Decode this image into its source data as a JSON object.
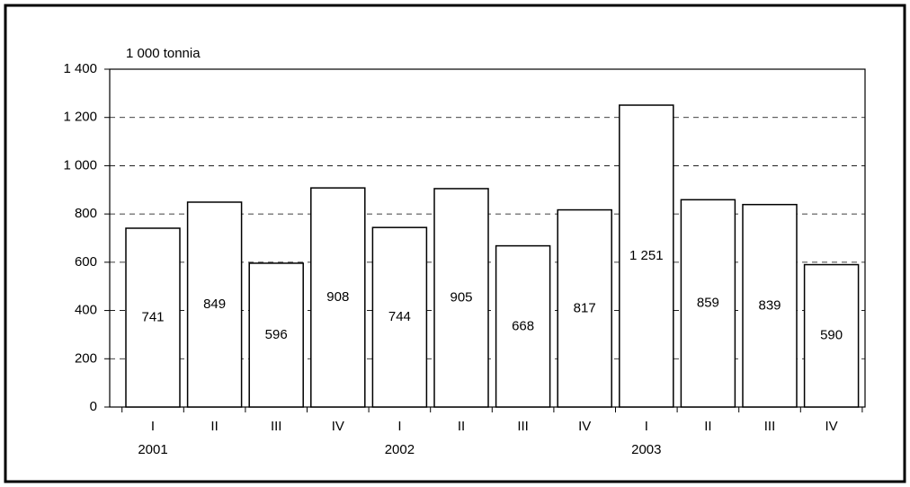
{
  "chart_data": {
    "type": "bar",
    "y_axis_label": "1 000 tonnia",
    "categories": [
      "I",
      "II",
      "III",
      "IV",
      "I",
      "II",
      "III",
      "IV",
      "I",
      "II",
      "III",
      "IV"
    ],
    "x_groups": [
      "2001",
      "2002",
      "2003"
    ],
    "values": [
      741,
      849,
      596,
      908,
      744,
      905,
      668,
      817,
      1251,
      859,
      839,
      590
    ],
    "value_labels": [
      "741",
      "849",
      "596",
      "908",
      "744",
      "905",
      "668",
      "817",
      "1 251",
      "859",
      "839",
      "590"
    ],
    "color": "#ffffff",
    "ylim": [
      0,
      1400
    ],
    "yticks": [
      0,
      200,
      400,
      600,
      800,
      {
        "value": 1000,
        "label": "1 000"
      },
      {
        "value": 1200,
        "label": "1 200"
      },
      {
        "value": 1400,
        "label": "1 400"
      }
    ],
    "grid": true
  }
}
